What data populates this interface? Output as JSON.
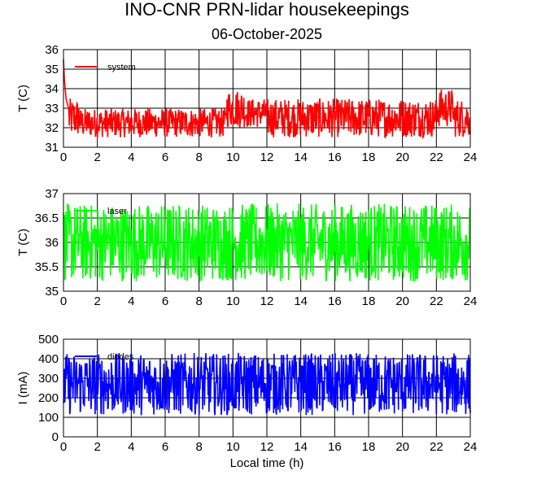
{
  "title": "INO-CNR PRN-lidar housekeepings",
  "subtitle": "06-October-2025",
  "xlabel": "Local time (h)",
  "chart_data": [
    {
      "type": "line",
      "ylabel": "T (C)",
      "xlim": [
        0,
        24
      ],
      "ylim": [
        31,
        36
      ],
      "xticks": [
        "0",
        "2",
        "4",
        "6",
        "8",
        "10",
        "12",
        "14",
        "16",
        "18",
        "20",
        "22",
        "24"
      ],
      "yticks": [
        "31",
        "32",
        "33",
        "34",
        "35",
        "36"
      ],
      "grid": true,
      "legend_position": "top-left",
      "series": [
        {
          "name": "system",
          "color": "#ff0000",
          "x": [
            0,
            0.05,
            0.15,
            0.3,
            0.6,
            1.0,
            2.0,
            3.0,
            4.0,
            5.0,
            6.0,
            7.0,
            8.0,
            9.0,
            9.5,
            10.0,
            11.0,
            12.0,
            13.0,
            14.0,
            15.0,
            16.0,
            17.0,
            18.0,
            19.0,
            20.0,
            21.0,
            22.0,
            22.5,
            23.0,
            24.0
          ],
          "values": [
            35.5,
            34.5,
            33.5,
            33.0,
            32.5,
            32.5,
            32.5,
            32.0,
            32.0,
            32.5,
            32.0,
            32.0,
            32.0,
            32.0,
            32.5,
            33.0,
            33.0,
            32.5,
            32.5,
            32.5,
            32.5,
            32.5,
            32.5,
            32.5,
            32.5,
            32.5,
            32.5,
            32.5,
            33.0,
            32.5,
            32.5
          ],
          "band": [
            [
              0.3,
              1.0,
              31.5,
              33.5
            ],
            [
              1.0,
              5.0,
              31.5,
              33.0
            ],
            [
              5.0,
              9.6,
              31.5,
              33.0
            ],
            [
              9.6,
              10.7,
              32.0,
              34.0
            ],
            [
              10.7,
              12.0,
              32.0,
              33.5
            ],
            [
              12.0,
              22.0,
              31.5,
              33.5
            ],
            [
              22.0,
              23.0,
              32.0,
              34.0
            ],
            [
              23.0,
              24.0,
              31.5,
              33.5
            ]
          ]
        }
      ]
    },
    {
      "type": "line",
      "ylabel": "T (C)",
      "xlim": [
        0,
        24
      ],
      "ylim": [
        35,
        37
      ],
      "xticks": [
        "0",
        "2",
        "4",
        "6",
        "8",
        "10",
        "12",
        "14",
        "16",
        "18",
        "20",
        "22",
        "24"
      ],
      "yticks": [
        "35",
        "35.5",
        "36",
        "36.5",
        "37"
      ],
      "grid": true,
      "legend_position": "top-left",
      "series": [
        {
          "name": "laser",
          "color": "#00ff00",
          "x": [
            0,
            2,
            4,
            6,
            8,
            10,
            12,
            14,
            16,
            18,
            20,
            22,
            24
          ],
          "values": [
            36.0,
            36.0,
            36.0,
            36.0,
            36.0,
            36.0,
            36.0,
            36.0,
            36.0,
            36.0,
            36.0,
            36.0,
            36.0
          ],
          "band": [
            [
              0,
              24,
              35.2,
              36.8
            ]
          ]
        }
      ]
    },
    {
      "type": "line",
      "ylabel": "I (mA)",
      "xlim": [
        0,
        24
      ],
      "ylim": [
        0,
        500
      ],
      "xticks": [
        "0",
        "2",
        "4",
        "6",
        "8",
        "10",
        "12",
        "14",
        "16",
        "18",
        "20",
        "22",
        "24"
      ],
      "yticks": [
        "0",
        "100",
        "200",
        "300",
        "400",
        "500"
      ],
      "grid": true,
      "legend_position": "top-left",
      "series": [
        {
          "name": "diodes",
          "color": "#0000ff",
          "x": [
            0,
            2,
            4,
            6,
            8,
            10,
            12,
            14,
            16,
            18,
            20,
            22,
            24
          ],
          "values": [
            270,
            270,
            270,
            270,
            270,
            270,
            270,
            270,
            270,
            270,
            270,
            270,
            270
          ],
          "band": [
            [
              0,
              24,
              110,
              430
            ]
          ]
        }
      ]
    }
  ]
}
